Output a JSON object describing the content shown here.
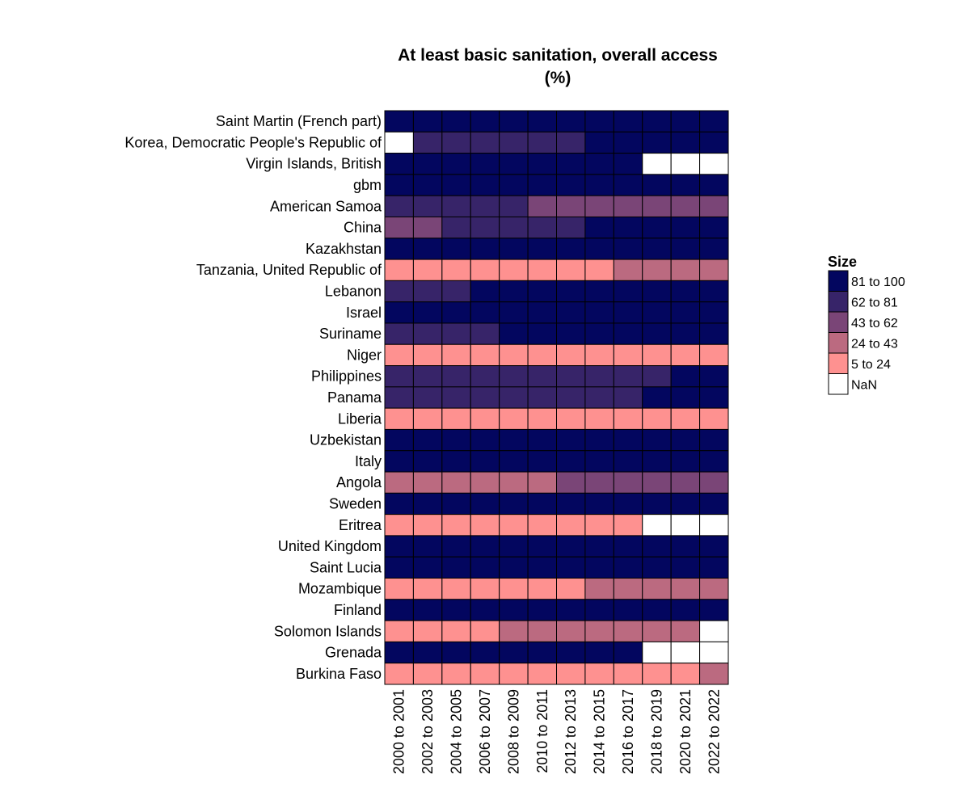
{
  "chart_data": {
    "type": "heatmap",
    "title": [
      "At least basic sanitation, overall access",
      "(%)"
    ],
    "columns": [
      "2000 to 2001",
      "2002 to 2003",
      "2004 to 2005",
      "2006 to 2007",
      "2008 to 2009",
      "2010 to 2011",
      "2012 to 2013",
      "2014 to 2015",
      "2016 to 2017",
      "2018 to 2019",
      "2020 to 2021",
      "2022 to 2022"
    ],
    "rows": [
      "Saint Martin (French part)",
      "Korea, Democratic People's Republic of",
      "Virgin Islands, British",
      "gbm",
      "American Samoa",
      "China",
      "Kazakhstan",
      "Tanzania, United Republic of",
      "Lebanon",
      "Israel",
      "Suriname",
      "Niger",
      "Philippines",
      "Panama",
      "Liberia",
      "Uzbekistan",
      "Italy",
      "Angola",
      "Sweden",
      "Eritrea",
      "United Kingdom",
      "Saint Lucia",
      "Mozambique",
      "Finland",
      "Solomon Islands",
      "Grenada",
      "Burkina Faso"
    ],
    "values": [
      [
        0,
        0,
        0,
        0,
        0,
        0,
        0,
        0,
        0,
        0,
        0,
        0
      ],
      [
        5,
        1,
        1,
        1,
        1,
        1,
        1,
        0,
        0,
        0,
        0,
        0
      ],
      [
        0,
        0,
        0,
        0,
        0,
        0,
        0,
        0,
        0,
        5,
        5,
        5
      ],
      [
        0,
        0,
        0,
        0,
        0,
        0,
        0,
        0,
        0,
        0,
        0,
        0
      ],
      [
        1,
        1,
        1,
        1,
        1,
        2,
        2,
        2,
        2,
        2,
        2,
        2
      ],
      [
        2,
        2,
        1,
        1,
        1,
        1,
        1,
        0,
        0,
        0,
        0,
        0
      ],
      [
        0,
        0,
        0,
        0,
        0,
        0,
        0,
        0,
        0,
        0,
        0,
        0
      ],
      [
        4,
        4,
        4,
        4,
        4,
        4,
        4,
        4,
        3,
        3,
        3,
        3
      ],
      [
        1,
        1,
        1,
        0,
        0,
        0,
        0,
        0,
        0,
        0,
        0,
        0
      ],
      [
        0,
        0,
        0,
        0,
        0,
        0,
        0,
        0,
        0,
        0,
        0,
        0
      ],
      [
        1,
        1,
        1,
        1,
        0,
        0,
        0,
        0,
        0,
        0,
        0,
        0
      ],
      [
        4,
        4,
        4,
        4,
        4,
        4,
        4,
        4,
        4,
        4,
        4,
        4
      ],
      [
        1,
        1,
        1,
        1,
        1,
        1,
        1,
        1,
        1,
        1,
        0,
        0
      ],
      [
        1,
        1,
        1,
        1,
        1,
        1,
        1,
        1,
        1,
        0,
        0,
        0
      ],
      [
        4,
        4,
        4,
        4,
        4,
        4,
        4,
        4,
        4,
        4,
        4,
        4
      ],
      [
        0,
        0,
        0,
        0,
        0,
        0,
        0,
        0,
        0,
        0,
        0,
        0
      ],
      [
        0,
        0,
        0,
        0,
        0,
        0,
        0,
        0,
        0,
        0,
        0,
        0
      ],
      [
        3,
        3,
        3,
        3,
        3,
        3,
        2,
        2,
        2,
        2,
        2,
        2
      ],
      [
        0,
        0,
        0,
        0,
        0,
        0,
        0,
        0,
        0,
        0,
        0,
        0
      ],
      [
        4,
        4,
        4,
        4,
        4,
        4,
        4,
        4,
        4,
        5,
        5,
        5
      ],
      [
        0,
        0,
        0,
        0,
        0,
        0,
        0,
        0,
        0,
        0,
        0,
        0
      ],
      [
        0,
        0,
        0,
        0,
        0,
        0,
        0,
        0,
        0,
        0,
        0,
        0
      ],
      [
        4,
        4,
        4,
        4,
        4,
        4,
        4,
        3,
        3,
        3,
        3,
        3
      ],
      [
        0,
        0,
        0,
        0,
        0,
        0,
        0,
        0,
        0,
        0,
        0,
        0
      ],
      [
        4,
        4,
        4,
        4,
        3,
        3,
        3,
        3,
        3,
        3,
        3,
        5
      ],
      [
        0,
        0,
        0,
        0,
        0,
        0,
        0,
        0,
        0,
        5,
        5,
        5
      ],
      [
        4,
        4,
        4,
        4,
        4,
        4,
        4,
        4,
        4,
        4,
        4,
        3
      ]
    ],
    "legend": {
      "title": "Size",
      "placement": "right",
      "bins": [
        {
          "label": "81  to  100",
          "color": "#03065f"
        },
        {
          "label": "62  to  81",
          "color": "#372469"
        },
        {
          "label": "43  to  62",
          "color": "#7a4577"
        },
        {
          "label": "24  to  43",
          "color": "#bb6a80"
        },
        {
          "label": "5  to  24",
          "color": "#fe9190"
        },
        {
          "label": "NaN",
          "color": "#ffffff"
        }
      ]
    }
  }
}
